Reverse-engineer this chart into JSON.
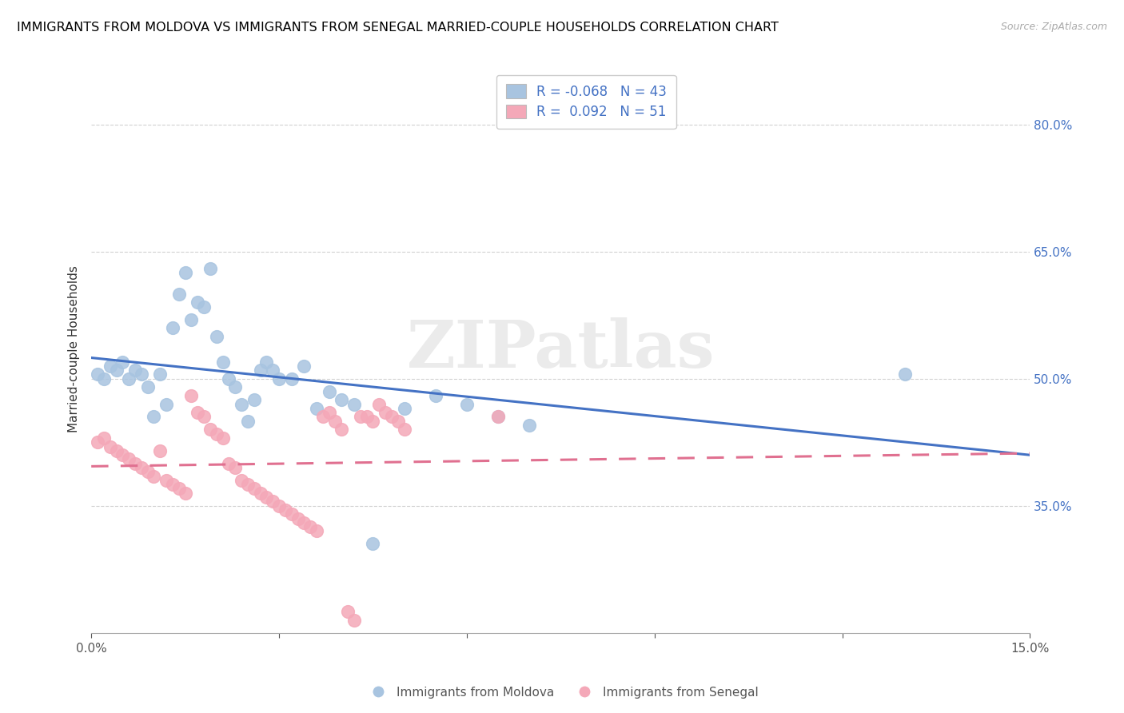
{
  "title": "IMMIGRANTS FROM MOLDOVA VS IMMIGRANTS FROM SENEGAL MARRIED-COUPLE HOUSEHOLDS CORRELATION CHART",
  "source": "Source: ZipAtlas.com",
  "ylabel": "Married-couple Households",
  "x_min": 0.0,
  "x_max": 0.15,
  "y_min": 0.2,
  "y_max": 0.87,
  "y_ticks": [
    0.35,
    0.5,
    0.65,
    0.8
  ],
  "legend_r_moldova": "-0.068",
  "legend_n_moldova": "43",
  "legend_r_senegal": "0.092",
  "legend_n_senegal": "51",
  "moldova_color": "#a8c4e0",
  "senegal_color": "#f4a8b8",
  "moldova_line_color": "#4472c4",
  "senegal_line_color": "#e07090",
  "watermark": "ZIPatlas",
  "moldova_x": [
    0.001,
    0.002,
    0.003,
    0.004,
    0.005,
    0.006,
    0.007,
    0.008,
    0.009,
    0.01,
    0.011,
    0.012,
    0.013,
    0.014,
    0.015,
    0.016,
    0.017,
    0.018,
    0.019,
    0.02,
    0.021,
    0.022,
    0.023,
    0.024,
    0.025,
    0.026,
    0.027,
    0.028,
    0.029,
    0.03,
    0.032,
    0.034,
    0.036,
    0.038,
    0.04,
    0.042,
    0.045,
    0.05,
    0.055,
    0.06,
    0.065,
    0.07,
    0.13
  ],
  "moldova_y": [
    0.505,
    0.5,
    0.515,
    0.51,
    0.52,
    0.5,
    0.51,
    0.505,
    0.49,
    0.455,
    0.505,
    0.47,
    0.56,
    0.6,
    0.625,
    0.57,
    0.59,
    0.585,
    0.63,
    0.55,
    0.52,
    0.5,
    0.49,
    0.47,
    0.45,
    0.475,
    0.51,
    0.52,
    0.51,
    0.5,
    0.5,
    0.515,
    0.465,
    0.485,
    0.475,
    0.47,
    0.305,
    0.465,
    0.48,
    0.47,
    0.455,
    0.445,
    0.505
  ],
  "senegal_x": [
    0.001,
    0.002,
    0.003,
    0.004,
    0.005,
    0.006,
    0.007,
    0.008,
    0.009,
    0.01,
    0.011,
    0.012,
    0.013,
    0.014,
    0.015,
    0.016,
    0.017,
    0.018,
    0.019,
    0.02,
    0.021,
    0.022,
    0.023,
    0.024,
    0.025,
    0.026,
    0.027,
    0.028,
    0.029,
    0.03,
    0.031,
    0.032,
    0.033,
    0.034,
    0.035,
    0.036,
    0.037,
    0.038,
    0.039,
    0.04,
    0.041,
    0.042,
    0.043,
    0.044,
    0.045,
    0.046,
    0.047,
    0.048,
    0.049,
    0.05,
    0.065
  ],
  "senegal_y": [
    0.425,
    0.43,
    0.42,
    0.415,
    0.41,
    0.405,
    0.4,
    0.395,
    0.39,
    0.385,
    0.415,
    0.38,
    0.375,
    0.37,
    0.365,
    0.48,
    0.46,
    0.455,
    0.44,
    0.435,
    0.43,
    0.4,
    0.395,
    0.38,
    0.375,
    0.37,
    0.365,
    0.36,
    0.355,
    0.35,
    0.345,
    0.34,
    0.335,
    0.33,
    0.325,
    0.32,
    0.455,
    0.46,
    0.45,
    0.44,
    0.225,
    0.215,
    0.455,
    0.455,
    0.45,
    0.47,
    0.46,
    0.455,
    0.45,
    0.44,
    0.455
  ]
}
